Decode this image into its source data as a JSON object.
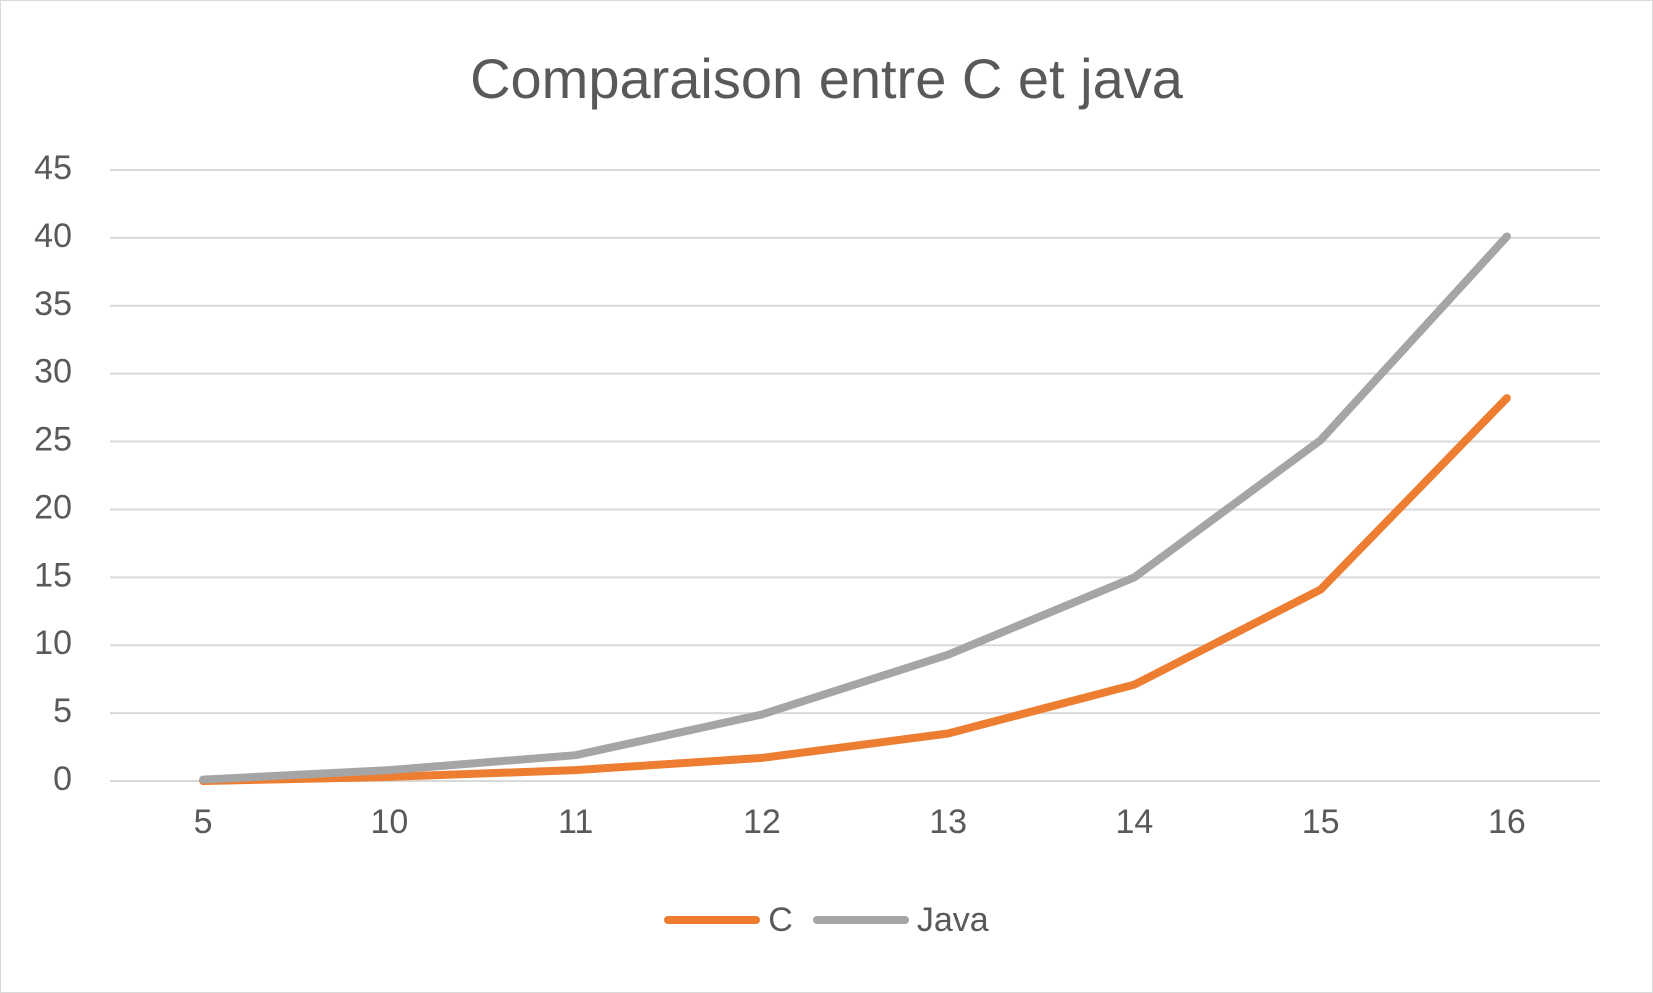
{
  "chart_data": {
    "type": "line",
    "title": "Comparaison entre C et java",
    "xlabel": "",
    "ylabel": "",
    "categories": [
      "5",
      "10",
      "11",
      "12",
      "13",
      "14",
      "15",
      "16"
    ],
    "ylim": [
      0,
      45
    ],
    "yticks": [
      0,
      5,
      10,
      15,
      20,
      25,
      30,
      35,
      40,
      45
    ],
    "grid": true,
    "legend_position": "bottom",
    "series": [
      {
        "name": "C",
        "color": "#ED7D31",
        "values": [
          0,
          0.3,
          0.8,
          1.7,
          3.5,
          7.1,
          14.1,
          28.2
        ]
      },
      {
        "name": "Java",
        "color": "#A5A5A5",
        "values": [
          0.1,
          0.8,
          1.9,
          4.9,
          9.3,
          15.0,
          25.1,
          40.1
        ]
      }
    ]
  }
}
